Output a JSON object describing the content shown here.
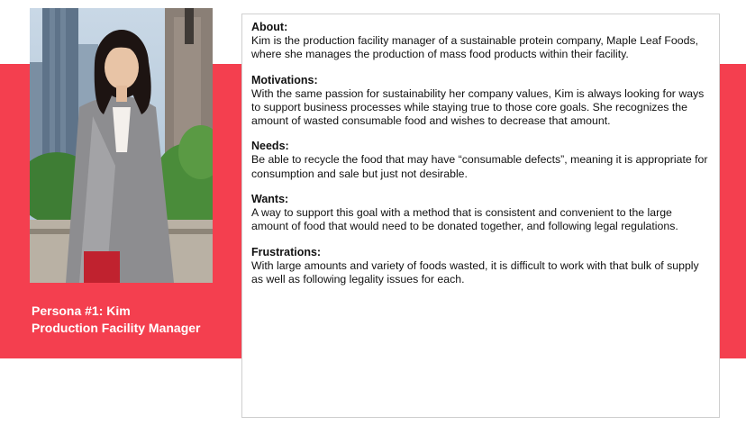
{
  "persona": {
    "caption_line1": "Persona #1: Kim",
    "caption_line2": "Production Facility Manager"
  },
  "photo": {
    "icon": "portrait-photo"
  },
  "colors": {
    "band": "#f43f4f",
    "caption_text": "#ffffff",
    "card_border": "#cfcfcf"
  },
  "sections": [
    {
      "heading": "About:",
      "body": "Kim is the production facility manager of a sustainable protein company, Maple Leaf Foods, where she manages the production of mass food products within their facility."
    },
    {
      "heading": "Motivations:",
      "body": "With the same passion for sustainability her company values, Kim is always looking for ways to support business processes while staying true to those core goals. She recognizes the amount of wasted consumable food and wishes to decrease that amount."
    },
    {
      "heading": "Needs:",
      "body": "Be able to recycle the food that may have “consumable defects”, meaning it is appropriate for consumption and sale but just not desirable."
    },
    {
      "heading": "Wants:",
      "body": "A way to support this goal with a method that is consistent and convenient to the large amount of food that would need to be donated together, and following legal regulations."
    },
    {
      "heading": "Frustrations:",
      "body": "With large amounts and variety of foods wasted, it is difficult to work with that bulk of supply as well as following legality issues for each."
    }
  ]
}
